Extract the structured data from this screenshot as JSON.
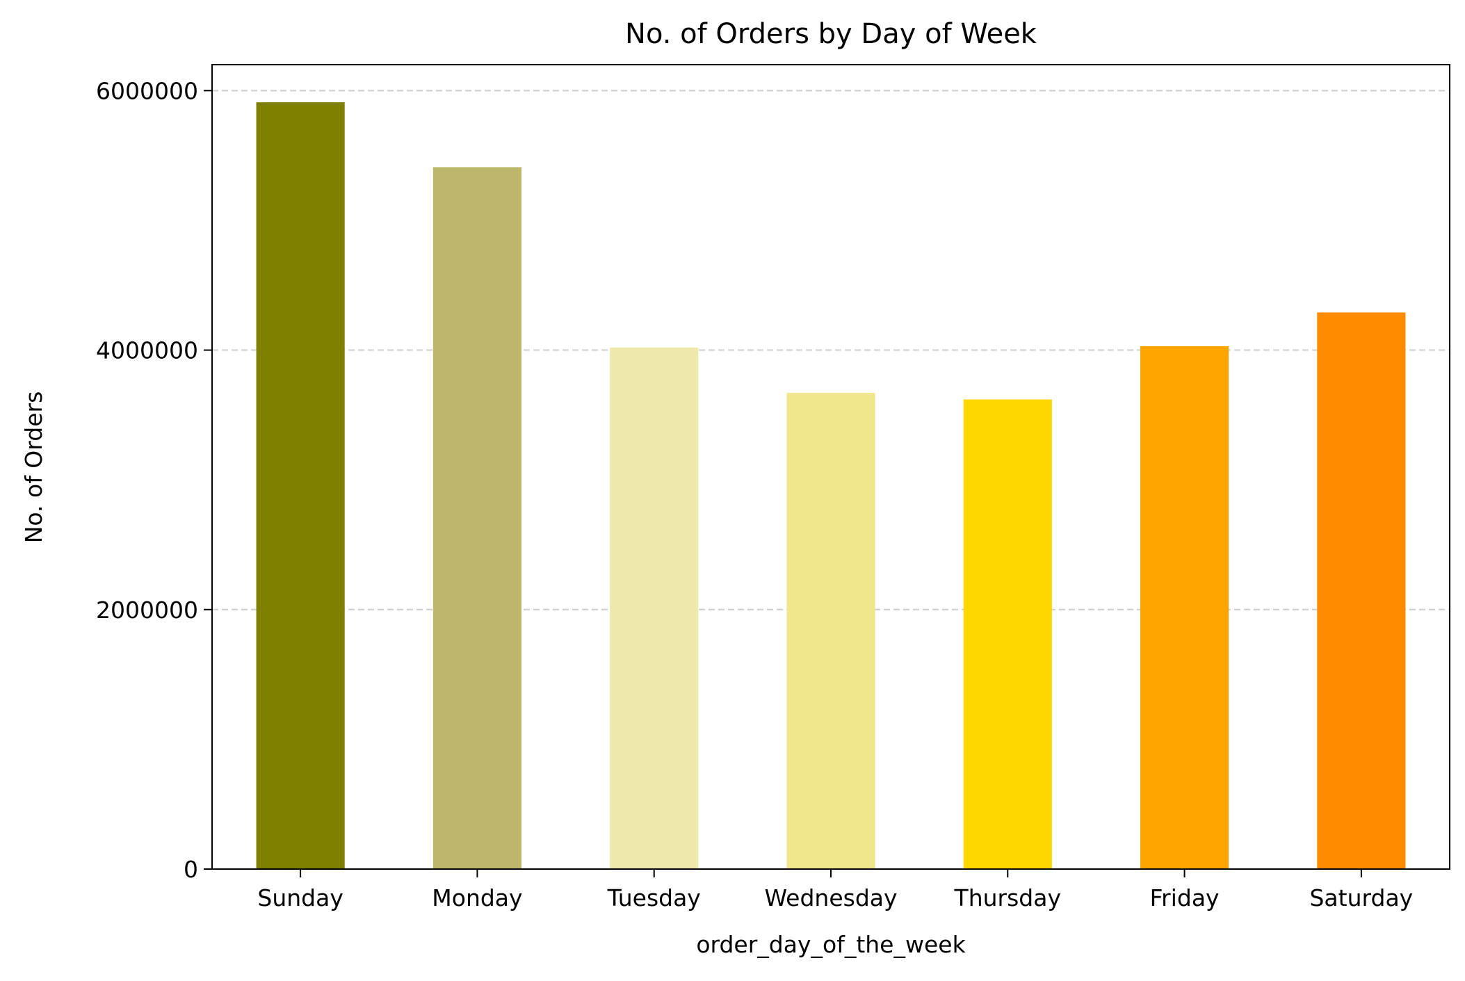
{
  "chart_data": {
    "type": "bar",
    "title": "No. of Orders by Day of Week",
    "xlabel": "order_day_of_the_week",
    "ylabel": "No. of Orders",
    "categories": [
      "Sunday",
      "Monday",
      "Tuesday",
      "Wednesday",
      "Thursday",
      "Friday",
      "Saturday"
    ],
    "values": [
      5910000,
      5410000,
      4020000,
      3670000,
      3620000,
      4030000,
      4290000
    ],
    "colors": [
      "#808000",
      "#bdb76b",
      "#eee8aa",
      "#f0e68c",
      "#ffd700",
      "#ffa500",
      "#ff8c00"
    ],
    "ylim": [
      0,
      6200000
    ],
    "yticks": [
      0,
      2000000,
      4000000,
      6000000
    ],
    "ytick_labels": [
      "0",
      "2000000",
      "4000000",
      "6000000"
    ],
    "grid": {
      "axis": "y",
      "style": "dashed",
      "color": "#cccccc"
    },
    "legend": "none"
  }
}
